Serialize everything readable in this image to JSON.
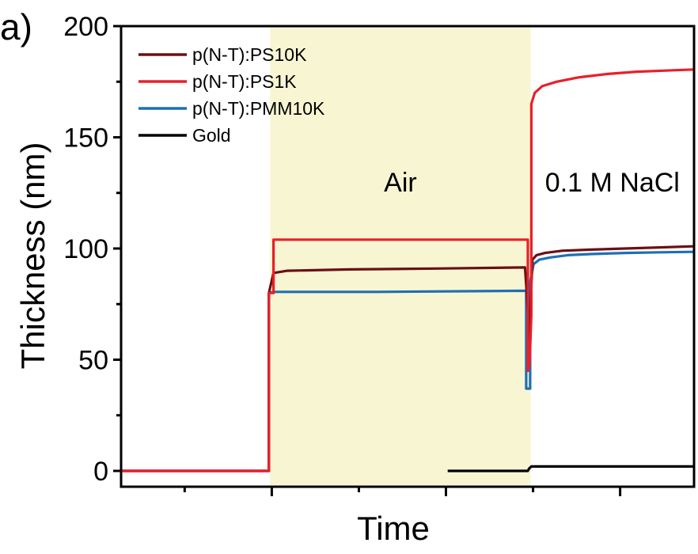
{
  "chart_data": {
    "type": "line",
    "panel_label": "a)",
    "xlabel": "Time",
    "ylabel": "Thickness (nm)",
    "ylim": [
      0,
      200
    ],
    "yticks": [
      "0",
      "50",
      "100",
      "150",
      "200"
    ],
    "xlim": [
      0,
      100
    ],
    "x_tick_labels_shown": false,
    "regions": [
      {
        "label": "Air",
        "x_start": 26,
        "x_end": 71.5,
        "fill": "#f8f6d2"
      },
      {
        "label": "0.1 M NaCl",
        "x_start": 71.5,
        "x_end": 100,
        "fill": "#ffffff"
      }
    ],
    "legend_position": "top-left",
    "series": [
      {
        "name": "p(N-T):PS10K",
        "color": "#6b1015",
        "x": [
          0,
          25.8,
          25.8,
          26.6,
          29,
          40,
          55,
          70.5,
          70.8,
          71.4,
          71.4,
          71.8,
          72.5,
          74,
          77,
          82,
          88,
          94,
          100
        ],
        "y": [
          0,
          0,
          80,
          89,
          90,
          90.6,
          91,
          91.5,
          80,
          55,
          70,
          95,
          97,
          98,
          99,
          99.5,
          100,
          100.5,
          101
        ]
      },
      {
        "name": "p(N-T):PS1K",
        "color": "#e8202a",
        "x": [
          0,
          25.8,
          25.8,
          26.6,
          26.6,
          71,
          71,
          71.3,
          71.6,
          71.6,
          72.2,
          73.5,
          76,
          80,
          85,
          90,
          95,
          100
        ],
        "y": [
          0,
          0,
          80,
          80,
          104,
          104,
          45,
          48,
          70,
          165,
          170,
          173,
          175,
          177,
          178.5,
          179.5,
          180,
          180.5
        ]
      },
      {
        "name": "p(N-T):PMM10K",
        "color": "#1f6fb5",
        "x": [
          0,
          25.8,
          25.8,
          26.6,
          45,
          70.7,
          70.7,
          71.4,
          71.4,
          72,
          73,
          75,
          78,
          82,
          88,
          94,
          100
        ],
        "y": [
          0,
          0,
          80,
          80.5,
          80.5,
          81,
          37,
          37,
          85,
          93,
          95,
          96,
          97,
          97.5,
          98,
          98.3,
          98.5
        ]
      },
      {
        "name": "Gold",
        "color": "#000000",
        "x": [
          57,
          71,
          71.2,
          71.6,
          100
        ],
        "y": [
          0,
          0,
          1,
          2,
          2
        ],
        "x_end_override": 100
      }
    ]
  }
}
